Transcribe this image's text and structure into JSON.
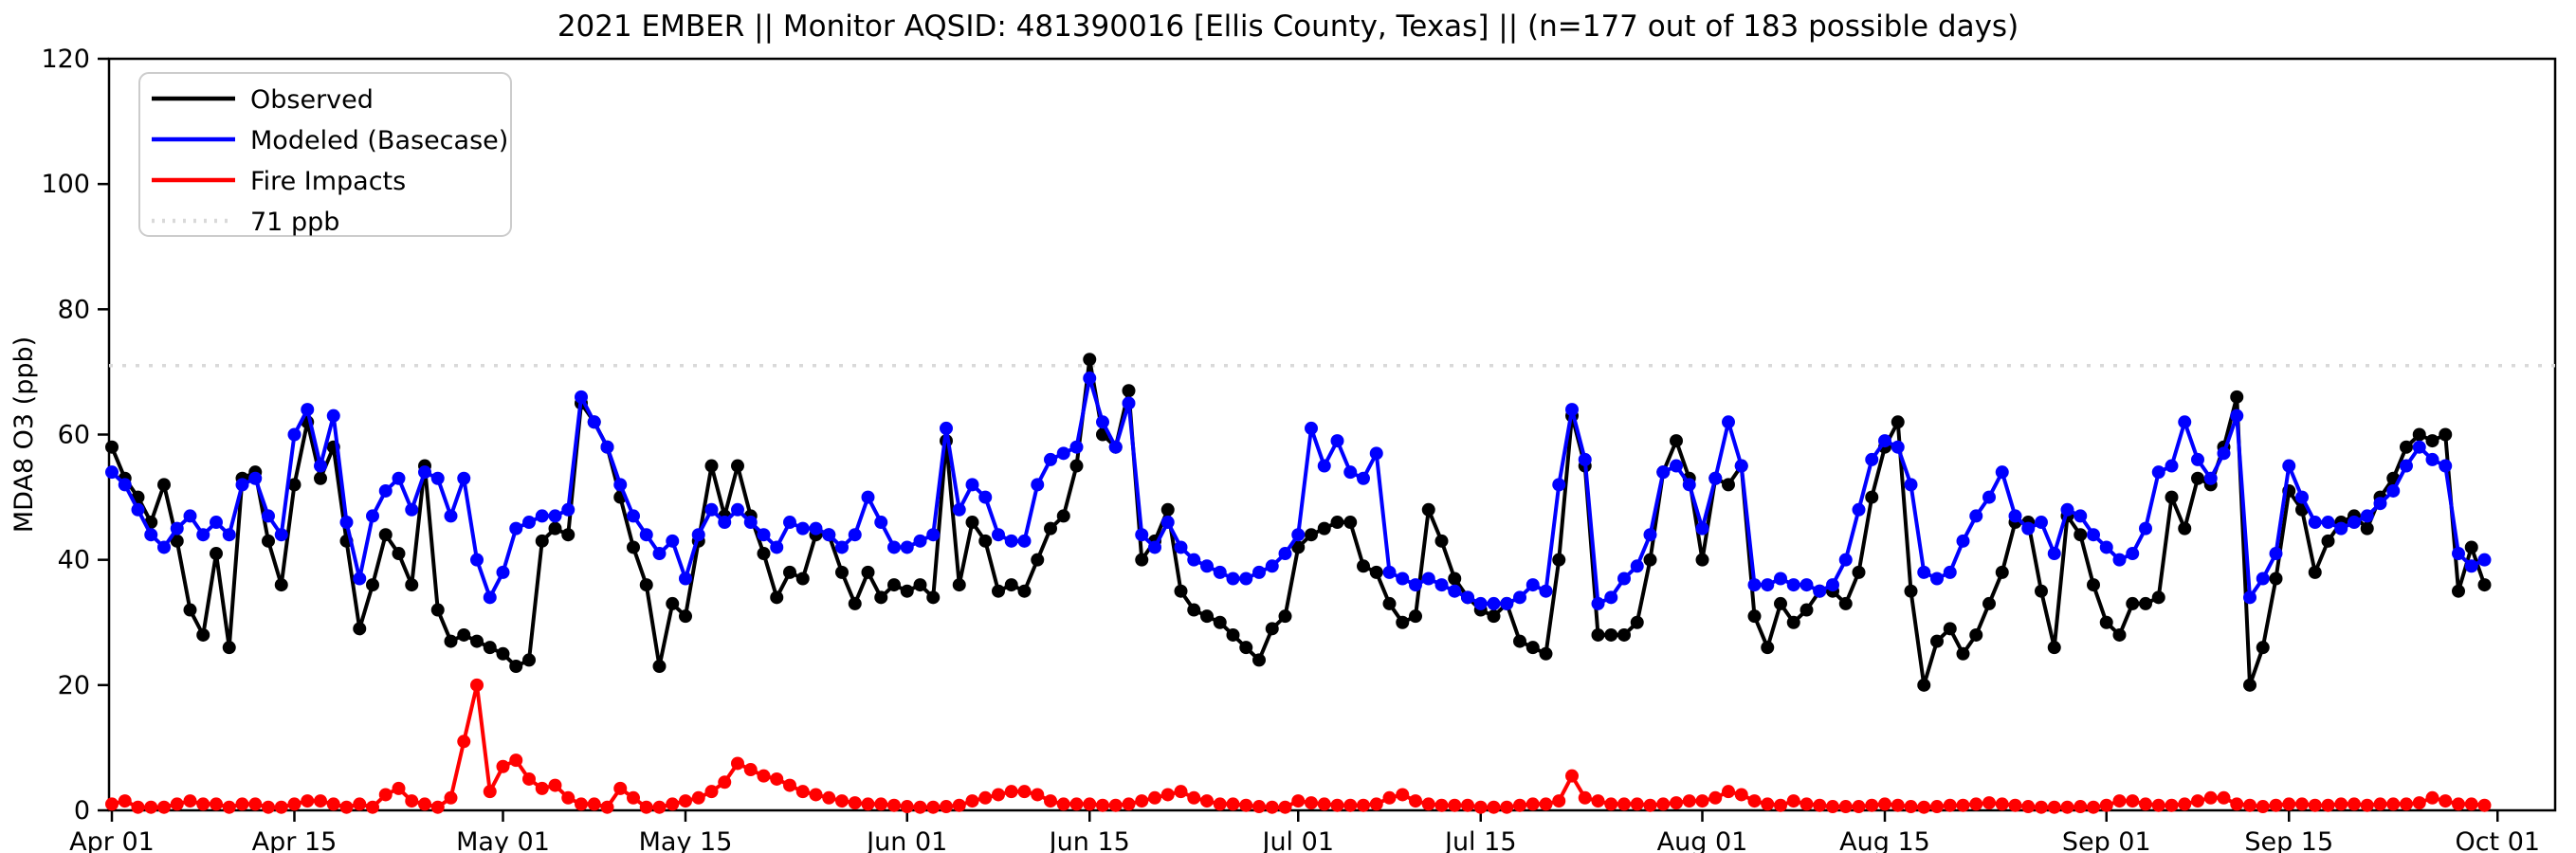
{
  "figure": {
    "title": "2021 EMBER || Monitor AQSID: 481390016 [Ellis County, Texas] || (n=177 out of 183 possible days)"
  },
  "chart_data": {
    "type": "line",
    "title": "2021 EMBER || Monitor AQSID: 481390016 [Ellis County, Texas] || (n=177 out of 183 possible days)",
    "xlabel": "",
    "ylabel": "MDA8 O3 (ppb)",
    "ylim": [
      0,
      120
    ],
    "yticks": [
      0,
      20,
      40,
      60,
      80,
      100,
      120
    ],
    "x_start": "Apr 01",
    "x_end": "Oct 01",
    "xticks": [
      {
        "label": "Apr 01",
        "day": 0
      },
      {
        "label": "Apr 15",
        "day": 14
      },
      {
        "label": "May 01",
        "day": 30
      },
      {
        "label": "May 15",
        "day": 44
      },
      {
        "label": "Jun 01",
        "day": 61
      },
      {
        "label": "Jun 15",
        "day": 75
      },
      {
        "label": "Jul 01",
        "day": 91
      },
      {
        "label": "Jul 15",
        "day": 105
      },
      {
        "label": "Aug 01",
        "day": 122
      },
      {
        "label": "Aug 15",
        "day": 136
      },
      {
        "label": "Sep 01",
        "day": 153
      },
      {
        "label": "Sep 15",
        "day": 167
      },
      {
        "label": "Oct 01",
        "day": 183
      }
    ],
    "grid": false,
    "legend_position": "upper-left",
    "threshold_line": {
      "label": "71 ppb",
      "value": 71,
      "color": "#d9d9d9",
      "style": "dotted"
    },
    "series": [
      {
        "name": "Observed",
        "color": "#000000",
        "marker": "circle",
        "values": [
          58,
          53,
          50,
          46,
          52,
          43,
          32,
          28,
          41,
          26,
          53,
          54,
          43,
          36,
          52,
          62,
          53,
          58,
          43,
          29,
          36,
          44,
          41,
          36,
          55,
          32,
          27,
          28,
          27,
          26,
          25,
          23,
          24,
          43,
          45,
          44,
          65,
          62,
          58,
          50,
          42,
          36,
          23,
          33,
          31,
          43,
          55,
          47,
          55,
          47,
          41,
          34,
          38,
          37,
          44,
          44,
          38,
          33,
          38,
          34,
          36,
          35,
          36,
          34,
          59,
          36,
          46,
          43,
          35,
          36,
          35,
          40,
          45,
          47,
          55,
          72,
          60,
          58,
          67,
          40,
          43,
          48,
          35,
          32,
          31,
          30,
          28,
          26,
          24,
          29,
          31,
          42,
          44,
          45,
          46,
          46,
          39,
          38,
          33,
          30,
          31,
          48,
          43,
          37,
          34,
          32,
          31,
          33,
          27,
          26,
          25,
          40,
          63,
          55,
          28,
          28,
          28,
          30,
          40,
          54,
          59,
          53,
          40,
          53,
          52,
          55,
          31,
          26,
          33,
          30,
          32,
          35,
          35,
          33,
          38,
          50,
          58,
          62,
          35,
          20,
          27,
          29,
          25,
          28,
          33,
          38,
          46,
          46,
          35,
          26,
          47,
          44,
          36,
          30,
          28,
          33,
          33,
          34,
          50,
          45,
          53,
          52,
          58,
          66,
          20,
          26,
          37,
          51,
          48,
          38,
          43,
          46,
          47,
          45,
          50,
          53,
          58,
          60,
          59,
          60,
          35,
          42,
          36
        ]
      },
      {
        "name": "Modeled (Basecase)",
        "color": "#0000ff",
        "marker": "circle",
        "values": [
          54,
          52,
          48,
          44,
          42,
          45,
          47,
          44,
          46,
          44,
          52,
          53,
          47,
          44,
          60,
          64,
          55,
          63,
          46,
          37,
          47,
          51,
          53,
          48,
          54,
          53,
          47,
          53,
          40,
          34,
          38,
          45,
          46,
          47,
          47,
          48,
          66,
          62,
          58,
          52,
          47,
          44,
          41,
          43,
          37,
          44,
          48,
          46,
          48,
          46,
          44,
          42,
          46,
          45,
          45,
          44,
          42,
          44,
          50,
          46,
          42,
          42,
          43,
          44,
          61,
          48,
          52,
          50,
          44,
          43,
          43,
          52,
          56,
          57,
          58,
          69,
          62,
          58,
          65,
          44,
          42,
          46,
          42,
          40,
          39,
          38,
          37,
          37,
          38,
          39,
          41,
          44,
          61,
          55,
          59,
          54,
          53,
          57,
          38,
          37,
          36,
          37,
          36,
          35,
          34,
          33,
          33,
          33,
          34,
          36,
          35,
          52,
          64,
          56,
          33,
          34,
          37,
          39,
          44,
          54,
          55,
          52,
          45,
          53,
          62,
          55,
          36,
          36,
          37,
          36,
          36,
          35,
          36,
          40,
          48,
          56,
          59,
          58,
          52,
          38,
          37,
          38,
          43,
          47,
          50,
          54,
          47,
          45,
          46,
          41,
          48,
          47,
          44,
          42,
          40,
          41,
          45,
          54,
          55,
          62,
          56,
          53,
          57,
          63,
          34,
          37,
          41,
          55,
          50,
          46,
          46,
          45,
          46,
          47,
          49,
          51,
          55,
          58,
          56,
          55,
          41,
          39,
          40
        ]
      },
      {
        "name": "Fire Impacts",
        "color": "#ff0000",
        "marker": "circle",
        "values": [
          1,
          1.5,
          0.5,
          0.5,
          0.5,
          1,
          1.5,
          1,
          1,
          0.5,
          1,
          1,
          0.5,
          0.5,
          1,
          1.5,
          1.5,
          1,
          0.5,
          1,
          0.5,
          2.5,
          3.5,
          1.5,
          1,
          0.5,
          2,
          11,
          20,
          3,
          7,
          8,
          5,
          3.5,
          4,
          2,
          1,
          1,
          0.5,
          3.5,
          2,
          0.5,
          0.5,
          1,
          1.5,
          2,
          3,
          4.5,
          7.5,
          6.5,
          5.5,
          5,
          4,
          3,
          2.5,
          2,
          1.5,
          1.2,
          1,
          1,
          0.8,
          0.6,
          0.5,
          0.5,
          0.6,
          0.8,
          1.5,
          2,
          2.5,
          3,
          3,
          2.5,
          1.5,
          1,
          1,
          1,
          0.8,
          0.8,
          1,
          1.5,
          2,
          2.5,
          3,
          2,
          1.5,
          1,
          1,
          0.8,
          0.6,
          0.5,
          0.5,
          1.5,
          1.2,
          1,
          0.8,
          0.8,
          0.8,
          1,
          2,
          2.5,
          1.5,
          1,
          0.8,
          0.8,
          0.8,
          0.5,
          0.5,
          0.5,
          0.8,
          1,
          1,
          1.5,
          5.5,
          2,
          1.5,
          1,
          1,
          1,
          0.8,
          1,
          1.2,
          1.5,
          1.5,
          2,
          3,
          2.5,
          1.5,
          1,
          0.8,
          1.5,
          1,
          0.8,
          0.6,
          0.6,
          0.6,
          0.8,
          1,
          0.8,
          0.6,
          0.5,
          0.6,
          0.8,
          0.8,
          1,
          1.2,
          1,
          0.8,
          0.6,
          0.5,
          0.5,
          0.5,
          0.6,
          0.5,
          0.8,
          1.5,
          1.5,
          1,
          0.8,
          0.8,
          1,
          1.5,
          2,
          2,
          1,
          0.8,
          0.6,
          0.8,
          1,
          1,
          0.8,
          0.8,
          1,
          1,
          0.8,
          1,
          1,
          1,
          1.2,
          2,
          1.5,
          1,
          1,
          0.8
        ]
      }
    ],
    "legend_entries": [
      "Observed",
      "Modeled (Basecase)",
      "Fire Impacts",
      "71 ppb"
    ]
  }
}
